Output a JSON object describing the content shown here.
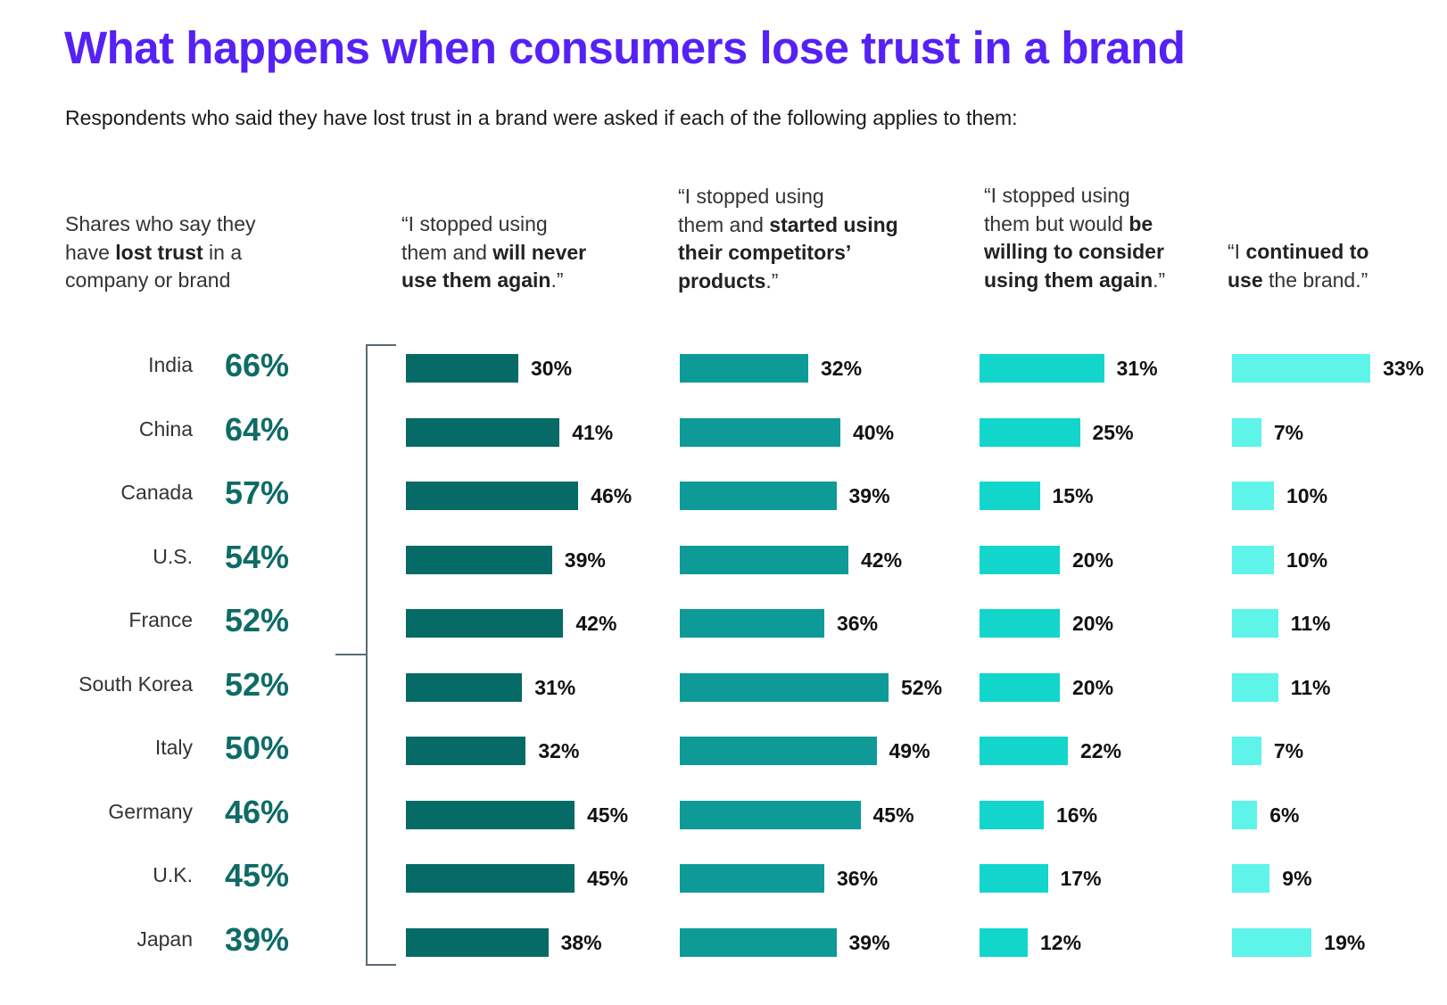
{
  "title": "What happens when consumers lose trust in a brand",
  "subtitle": "Respondents who said they have lost trust in a brand were asked if each of the following applies to them:",
  "left_header": [
    [
      {
        "t": "Shares who say they",
        "b": false
      }
    ],
    [
      {
        "t": "have ",
        "b": false
      },
      {
        "t": "lost trust",
        "b": true
      },
      {
        "t": " in a",
        "b": false
      }
    ],
    [
      {
        "t": "company or brand",
        "b": false
      }
    ]
  ],
  "chart_data": {
    "type": "bar",
    "title": "What happens when consumers lose trust in a brand",
    "categories": [
      "India",
      "China",
      "Canada",
      "U.S.",
      "France",
      "South Korea",
      "Italy",
      "Germany",
      "U.K.",
      "Japan"
    ],
    "lost_trust_share": [
      "66%",
      "64%",
      "57%",
      "54%",
      "52%",
      "52%",
      "50%",
      "46%",
      "45%",
      "39%"
    ],
    "series": [
      {
        "name": "I stopped using them and will never use them again.",
        "color": "#066a66",
        "values": [
          30,
          41,
          46,
          39,
          42,
          31,
          32,
          45,
          45,
          38
        ],
        "header": [
          [
            {
              "t": "“I stopped using",
              "b": false
            }
          ],
          [
            {
              "t": "them and ",
              "b": false
            },
            {
              "t": "will never",
              "b": true
            }
          ],
          [
            {
              "t": "use them again",
              "b": true
            },
            {
              "t": ".”",
              "b": false
            }
          ]
        ]
      },
      {
        "name": "I stopped using them and started using their competitors' products.",
        "color": "#0e9b97",
        "values": [
          32,
          40,
          39,
          42,
          36,
          52,
          49,
          45,
          36,
          39
        ],
        "header": [
          [
            {
              "t": "“I stopped using",
              "b": false
            }
          ],
          [
            {
              "t": "them and ",
              "b": false
            },
            {
              "t": "started using",
              "b": true
            }
          ],
          [
            {
              "t": "their competitors’",
              "b": true
            }
          ],
          [
            {
              "t": "products",
              "b": true
            },
            {
              "t": ".”",
              "b": false
            }
          ]
        ]
      },
      {
        "name": "I stopped using them but would be willing to consider using them again.",
        "color": "#12d6cc",
        "values": [
          31,
          25,
          15,
          20,
          20,
          20,
          22,
          16,
          17,
          12
        ],
        "header": [
          [
            {
              "t": "“I stopped using",
              "b": false
            }
          ],
          [
            {
              "t": "them but would ",
              "b": false
            },
            {
              "t": "be",
              "b": true
            }
          ],
          [
            {
              "t": "willing to consider",
              "b": true
            }
          ],
          [
            {
              "t": "using them again",
              "b": true
            },
            {
              "t": ".”",
              "b": false
            }
          ]
        ]
      },
      {
        "name": "I continued to use the brand.",
        "color": "#5ef4ea",
        "values": [
          33,
          7,
          10,
          10,
          11,
          11,
          7,
          6,
          9,
          19
        ],
        "header": [
          [
            {
              "t": "“I ",
              "b": false
            },
            {
              "t": "continued to",
              "b": true
            }
          ],
          [
            {
              "t": "use",
              "b": true
            },
            {
              "t": " the brand.”",
              "b": false
            }
          ]
        ]
      }
    ],
    "unit": "%",
    "xlabel": "",
    "ylabel": ""
  }
}
